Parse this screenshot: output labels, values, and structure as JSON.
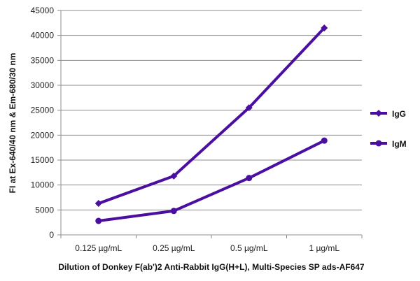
{
  "chart_data": {
    "type": "line",
    "title": "",
    "xlabel": "Dilution of Donkey F(ab')2 Anti-Rabbit IgG(H+L), Multi-Species SP ads-AF647",
    "ylabel": "FI at Ex-640/40 nm & Em-680/30 nm",
    "categories": [
      "0.125 µg/mL",
      "0.25 µg/mL",
      "0.5 µg/mL",
      "1 µg/mL"
    ],
    "ylim": [
      0,
      45000
    ],
    "yticks": [
      "0",
      "5000",
      "10000",
      "15000",
      "20000",
      "25000",
      "30000",
      "35000",
      "40000",
      "45000"
    ],
    "grid": true,
    "legend_position": "right",
    "series": [
      {
        "name": "IgG",
        "values": [
          6300,
          11800,
          25500,
          41500
        ],
        "color": "#4a0fa0",
        "marker": "diamond"
      },
      {
        "name": "IgM",
        "values": [
          2800,
          4800,
          11400,
          18900
        ],
        "color": "#4a0fa0",
        "marker": "circle"
      }
    ]
  }
}
